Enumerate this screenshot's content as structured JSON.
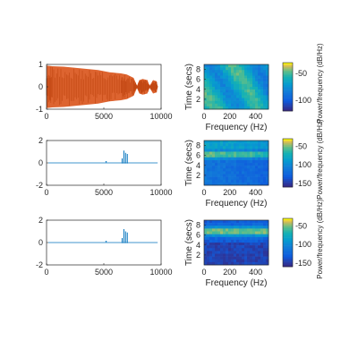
{
  "chart_data": [
    {
      "type": "line",
      "panel": "waveform-1",
      "xlim": [
        0,
        10000
      ],
      "ylim": [
        -1,
        1
      ],
      "xticks": [
        "0",
        "5000",
        "10000"
      ],
      "yticks": [
        "-1",
        "0",
        "1"
      ],
      "color": "#d95319",
      "envelope": {
        "x": [
          0,
          500,
          1500,
          2500,
          3500,
          4500,
          5500,
          6500,
          7000,
          7600,
          7900,
          8100,
          8400,
          8800,
          9000,
          9300,
          9600,
          9700
        ],
        "ymax": [
          0.95,
          0.92,
          0.9,
          0.85,
          0.8,
          0.75,
          0.65,
          0.6,
          0.55,
          0.4,
          0.05,
          0.3,
          0.35,
          0.3,
          0.05,
          0.3,
          0.25,
          0.02
        ],
        "ymin": [
          -0.95,
          -0.92,
          -0.9,
          -0.85,
          -0.8,
          -0.75,
          -0.65,
          -0.6,
          -0.55,
          -0.4,
          -0.05,
          -0.3,
          -0.35,
          -0.3,
          -0.05,
          -0.3,
          -0.25,
          -0.02
        ]
      }
    },
    {
      "type": "heatmap",
      "panel": "spectrogram-1",
      "xlabel": "Frequency (Hz)",
      "ylabel": "Time (secs)",
      "xlim": [
        0,
        500
      ],
      "ylim": [
        0,
        9
      ],
      "xticks": [
        "0",
        "200",
        "400"
      ],
      "yticks": [
        "2",
        "4",
        "6",
        "8"
      ],
      "colorbar": {
        "label": "Power/frequency (dB/Hz)",
        "ticks": [
          "-50",
          "-100"
        ],
        "range": [
          -120,
          -30
        ]
      }
    },
    {
      "type": "line",
      "panel": "waveform-2",
      "xlim": [
        0,
        10000
      ],
      "ylim": [
        -2,
        2
      ],
      "xticks": [
        "0",
        "5000",
        "10000"
      ],
      "yticks": [
        "-2",
        "0",
        "2"
      ],
      "color": "#0072bd",
      "spikes": {
        "x": [
          6600,
          6750,
          6900,
          7050
        ],
        "y": [
          0.4,
          1.1,
          0.9,
          0.8
        ]
      }
    },
    {
      "type": "heatmap",
      "panel": "spectrogram-2",
      "xlabel": "Frequency (Hz)",
      "ylabel": "Time (secs)",
      "xlim": [
        0,
        500
      ],
      "ylim": [
        0,
        9
      ],
      "xticks": [
        "0",
        "200",
        "400"
      ],
      "yticks": [
        "2",
        "4",
        "6",
        "8"
      ],
      "colorbar": {
        "label": "Power/frequency (dB/Hz)",
        "ticks": [
          "-50",
          "-100",
          "-150"
        ],
        "range": [
          -160,
          -30
        ]
      }
    },
    {
      "type": "line",
      "panel": "waveform-3",
      "xlim": [
        0,
        10000
      ],
      "ylim": [
        -2,
        2
      ],
      "xticks": [
        "0",
        "5000",
        "10000"
      ],
      "yticks": [
        "-2",
        "0",
        "2"
      ],
      "color": "#0072bd",
      "spikes": {
        "x": [
          6600,
          6750,
          6900,
          7050
        ],
        "y": [
          0.4,
          1.2,
          1.0,
          0.9
        ]
      }
    },
    {
      "type": "heatmap",
      "panel": "spectrogram-3",
      "xlabel": "Frequency (Hz)",
      "ylabel": "Time (secs)",
      "xlim": [
        0,
        500
      ],
      "ylim": [
        0,
        9
      ],
      "xticks": [
        "0",
        "200",
        "400"
      ],
      "yticks": [
        "2",
        "4",
        "6",
        "8"
      ],
      "colorbar": {
        "label": "Power/frequency (dB/Hz)",
        "ticks": [
          "-50",
          "-100",
          "-150"
        ],
        "range": [
          -160,
          -30
        ]
      }
    }
  ]
}
